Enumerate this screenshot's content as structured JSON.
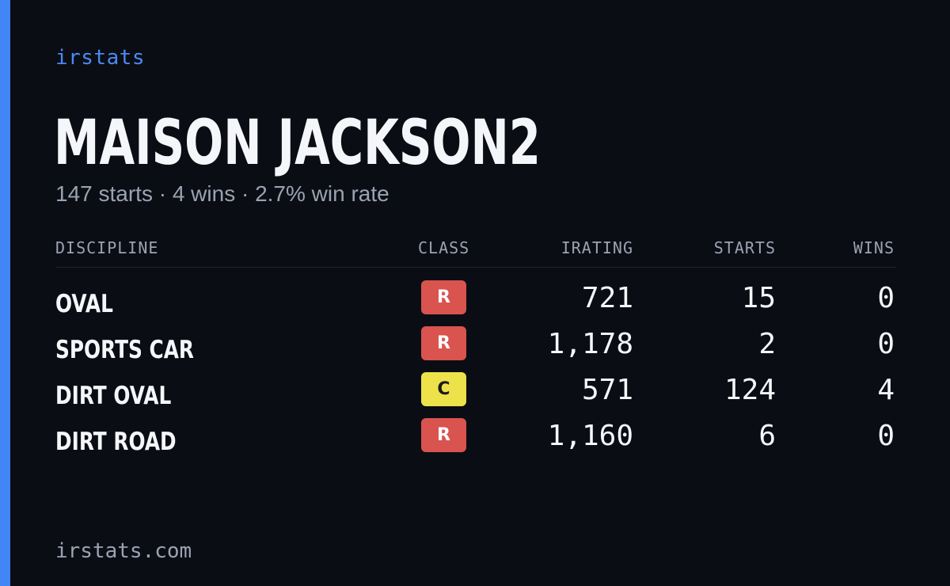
{
  "brand": "irstats",
  "player": {
    "name": "MAISON JACKSON2",
    "summary": "147 starts · 4 wins · 2.7% win rate"
  },
  "table": {
    "headers": {
      "discipline": "DISCIPLINE",
      "class": "CLASS",
      "irating": "IRATING",
      "starts": "STARTS",
      "wins": "WINS"
    },
    "rows": [
      {
        "discipline": "OVAL",
        "class": "R",
        "irating": "721",
        "starts": "15",
        "wins": "0"
      },
      {
        "discipline": "SPORTS CAR",
        "class": "R",
        "irating": "1,178",
        "starts": "2",
        "wins": "0"
      },
      {
        "discipline": "DIRT OVAL",
        "class": "C",
        "irating": "571",
        "starts": "124",
        "wins": "4"
      },
      {
        "discipline": "DIRT ROAD",
        "class": "R",
        "irating": "1,160",
        "starts": "6",
        "wins": "0"
      }
    ]
  },
  "class_colors": {
    "R": {
      "bg": "#d9534f",
      "fg": "#ffffff"
    },
    "C": {
      "bg": "#ede24a",
      "fg": "#1a1a1a"
    }
  },
  "colors": {
    "accent": "#4285f4",
    "background": "#0b0d14"
  },
  "footer": "irstats.com"
}
